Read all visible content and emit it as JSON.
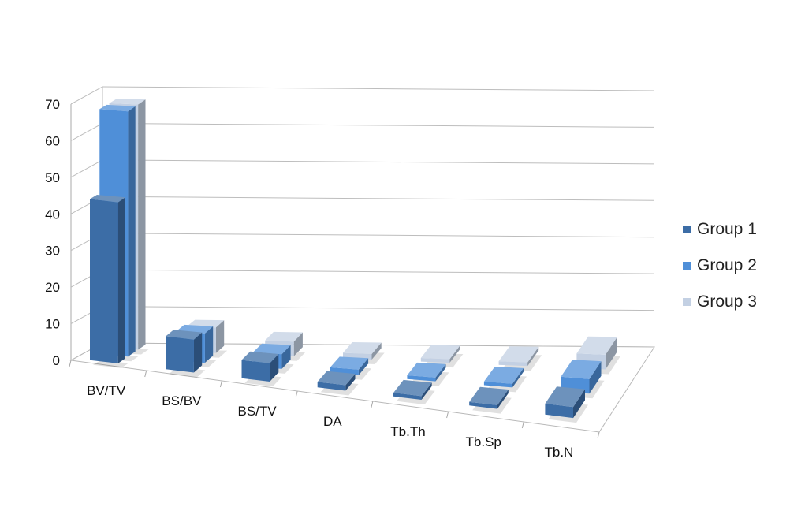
{
  "chart_data": {
    "type": "bar",
    "title": "",
    "xlabel": "",
    "ylabel": "",
    "ylim": [
      0,
      70
    ],
    "yticks": [
      0,
      10,
      20,
      30,
      40,
      50,
      60,
      70
    ],
    "grid": true,
    "legend_position": "right",
    "categories": [
      "BV/TV",
      "BS/BV",
      "BS/TV",
      "DA",
      "Tb.Th",
      "Tb.Sp",
      "Tb.N"
    ],
    "series": [
      {
        "name": "Group 1",
        "color": "#3c6da6",
        "values": [
          44,
          9,
          5,
          1.5,
          1,
          1,
          3
        ]
      },
      {
        "name": "Group 2",
        "color": "#4f8fd8",
        "values": [
          67,
          8,
          4,
          1.5,
          1,
          1,
          4
        ]
      },
      {
        "name": "Group 3",
        "color": "#c3d0e3",
        "values": [
          67,
          7,
          4,
          1.5,
          1,
          1,
          4
        ]
      }
    ]
  }
}
